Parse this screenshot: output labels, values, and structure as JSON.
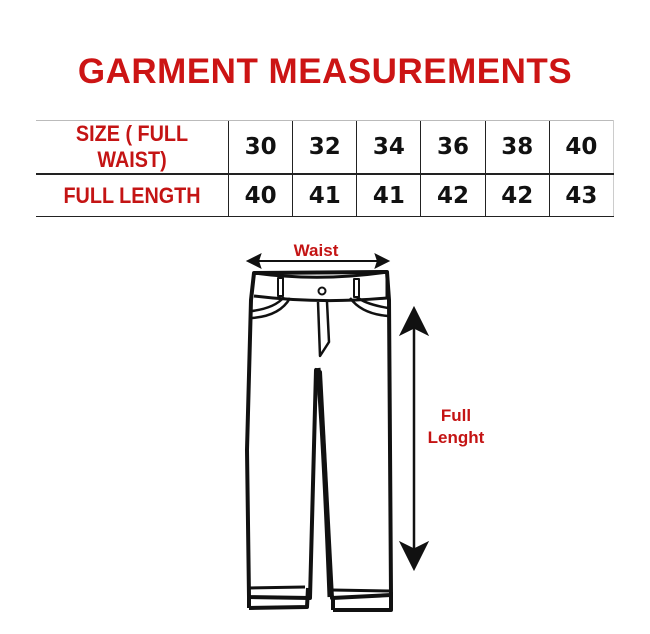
{
  "title": "GARMENT MEASUREMENTS",
  "table": {
    "rows": [
      {
        "label": "SIZE ( FULL WAIST)",
        "values": [
          "30",
          "32",
          "34",
          "36",
          "38",
          "40"
        ]
      },
      {
        "label": "FULL LENGTH",
        "values": [
          "40",
          "41",
          "41",
          "42",
          "42",
          "43"
        ]
      }
    ]
  },
  "diagram": {
    "waist_label": "Waist",
    "length_label_line1": "Full",
    "length_label_line2": "Lenght"
  },
  "colors": {
    "accent": "#c41414",
    "text": "#111111"
  }
}
